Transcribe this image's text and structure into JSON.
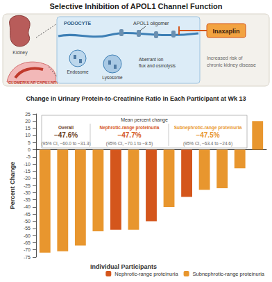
{
  "diagram": {
    "title": "Selective Inhibition of APOL1 Channel Function",
    "labels": {
      "kidney": "Kidney",
      "capillary": "GLOMERULAR CAPILLARY",
      "podocyte": "PODOCYTE",
      "oligomer": "APOL1 oligomer",
      "drug": "Inaxaplin",
      "endosome": "Endosome",
      "lysosome": "Lysosome",
      "effect": [
        "Aberrant ion",
        "flux and osmolysis"
      ],
      "risk": [
        "Increased risk of",
        "chronic kidney disease"
      ]
    }
  },
  "chart_data": {
    "type": "bar",
    "title": "Change in Urinary Protein-to-Creatinine Ratio in Each Participant at Wk 13",
    "x_label": "Individual Participants",
    "y_label": "Percent Change",
    "categories": [
      null,
      null,
      null,
      null,
      null,
      null,
      null,
      null,
      null,
      null,
      null,
      null,
      null
    ],
    "series": [
      {
        "name": "Nephrotic-range proteinuria",
        "color": "#d4561c",
        "values": [
          null,
          null,
          null,
          null,
          -56,
          null,
          -50,
          null,
          -33,
          null,
          null,
          null,
          null
        ]
      },
      {
        "name": "Subnephrotic-range proteinuria",
        "color": "#e8962e",
        "values": [
          -72,
          -71,
          -67,
          -57,
          null,
          -56,
          null,
          -40,
          null,
          -28,
          -27,
          -13,
          20
        ]
      }
    ],
    "annotation": {
      "title": "Mean percent change",
      "groups": [
        {
          "label": "Overall",
          "mean": "−47.6%",
          "ci": "(95% CI, −60.0 to −31.3)",
          "color": "#6b3e1f"
        },
        {
          "label": "Nephrotic-range proteinuria",
          "mean": "−47.7%",
          "ci": "(95% CI, −70.1 to −8.5)",
          "color": "#d4561c"
        },
        {
          "label": "Subnephrotic-range proteinuria",
          "mean": "−47.5%",
          "ci": "(95% CI, −63.4 to −24.6)",
          "color": "#e8962e"
        }
      ]
    },
    "ylim": [
      -75,
      25
    ],
    "yticks": [
      -75,
      -70,
      -65,
      -60,
      -55,
      -50,
      -45,
      -40,
      -35,
      -30,
      -25,
      -20,
      -15,
      -10,
      -5,
      0,
      5,
      10,
      15,
      20,
      25
    ],
    "grid": false,
    "legend": "bottom-right",
    "tick_labels": "y"
  }
}
